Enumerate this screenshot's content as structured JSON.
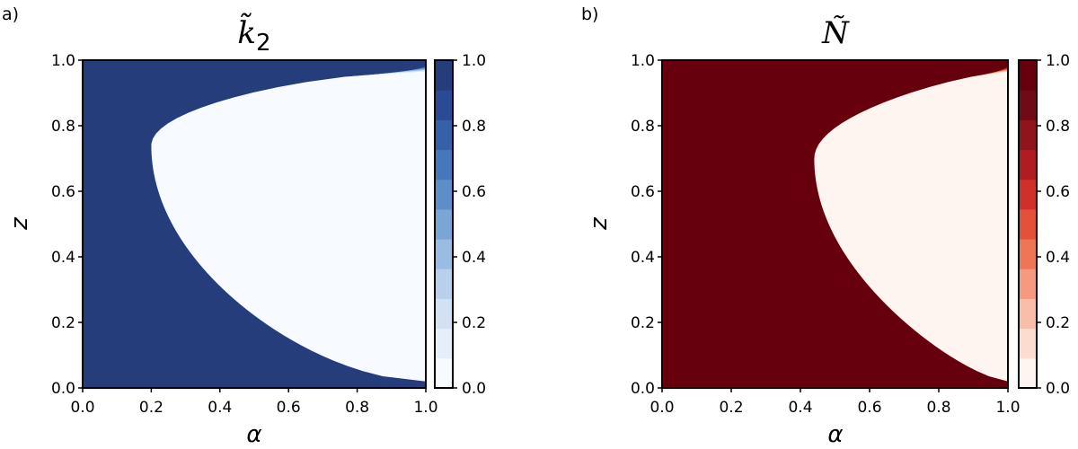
{
  "chart_data": [
    {
      "type": "heatmap",
      "panel_label": "a)",
      "title": "k̃",
      "title_subscript": "2",
      "xlabel": "α",
      "ylabel": "z",
      "xlim": [
        0,
        1
      ],
      "ylim": [
        0,
        1
      ],
      "xticks": [
        "0.0",
        "0.2",
        "0.4",
        "0.6",
        "0.8",
        "1.0"
      ],
      "yticks": [
        "0.0",
        "0.2",
        "0.4",
        "0.6",
        "0.8",
        "1.0"
      ],
      "colorbar": {
        "range": [
          0,
          1
        ],
        "ticks": [
          "0.0",
          "0.2",
          "0.4",
          "0.6",
          "0.8",
          "1.0"
        ],
        "levels": [
          0.0,
          0.1,
          0.2,
          0.3,
          0.4,
          0.5,
          0.6,
          0.7,
          0.8,
          0.9,
          1.0
        ],
        "colors": [
          "#f7fbff",
          "#e6eef9",
          "#d2e1f3",
          "#b8d0eb",
          "#99bde2",
          "#7aa6d6",
          "#5d8ec8",
          "#4676bb",
          "#3760aa",
          "#2a4a95",
          "#253d7b"
        ]
      }
    },
    {
      "type": "heatmap",
      "panel_label": "b)",
      "title": "Ñ",
      "title_subscript": "",
      "xlabel": "α",
      "ylabel": "z",
      "xlim": [
        0,
        1
      ],
      "ylim": [
        0,
        1
      ],
      "xticks": [
        "0.0",
        "0.2",
        "0.4",
        "0.6",
        "0.8",
        "1.0"
      ],
      "yticks": [
        "0.0",
        "0.2",
        "0.4",
        "0.6",
        "0.8",
        "1.0"
      ],
      "colorbar": {
        "range": [
          0,
          1
        ],
        "ticks": [
          "0.0",
          "0.2",
          "0.4",
          "0.6",
          "0.8",
          "1.0"
        ],
        "levels": [
          0.0,
          0.1,
          0.2,
          0.3,
          0.4,
          0.5,
          0.6,
          0.7,
          0.8,
          0.9,
          1.0
        ],
        "colors": [
          "#fff5f0",
          "#fcdccf",
          "#f9bda8",
          "#f59a7f",
          "#ef7557",
          "#e4513b",
          "#cf3029",
          "#b01d21",
          "#8f141b",
          "#6f0b17",
          "#67000d"
        ]
      }
    }
  ]
}
